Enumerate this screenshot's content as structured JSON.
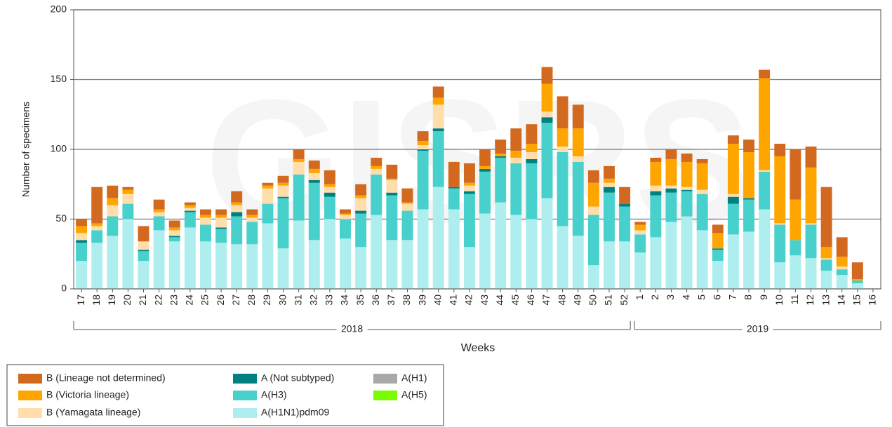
{
  "chart_data": {
    "type": "stacked_bar",
    "watermark": "GISRS",
    "y_label": "Number of specimens",
    "x_label": "Weeks",
    "categories": [
      "17",
      "18",
      "19",
      "20",
      "21",
      "22",
      "23",
      "24",
      "25",
      "26",
      "27",
      "28",
      "29",
      "30",
      "31",
      "32",
      "33",
      "34",
      "35",
      "36",
      "37",
      "38",
      "39",
      "40",
      "41",
      "42",
      "43",
      "44",
      "45",
      "46",
      "47",
      "48",
      "49",
      "50",
      "51",
      "52",
      "1",
      "2",
      "3",
      "4",
      "5",
      "6",
      "7",
      "8",
      "9",
      "10",
      "11",
      "12",
      "13",
      "14",
      "15",
      "16"
    ],
    "groups": [
      "2018",
      "2019"
    ],
    "ylim": [
      0,
      200
    ],
    "yticks": [
      0,
      50,
      100,
      150,
      200
    ],
    "grid": true,
    "series": [
      {
        "name": "B (Lineage not determined)",
        "color": "#d2691e",
        "values": [
          5,
          26,
          9,
          2,
          11,
          7,
          5,
          2,
          4,
          4,
          8,
          4,
          2,
          5,
          7,
          6,
          10,
          3,
          8,
          6,
          10,
          10,
          7,
          8,
          18,
          14,
          12,
          10,
          16,
          14,
          12,
          23,
          17,
          9,
          9,
          12,
          2,
          3,
          7,
          6,
          3,
          6,
          6,
          9,
          6,
          9,
          36,
          15,
          43,
          14,
          12,
          0
        ]
      },
      {
        "name": "B (Victoria lineage)",
        "color": "#ffa500",
        "values": [
          5,
          2,
          5,
          3,
          0,
          2,
          2,
          2,
          2,
          2,
          2,
          2,
          2,
          2,
          2,
          3,
          2,
          1,
          2,
          2,
          1,
          1,
          3,
          5,
          0,
          2,
          2,
          2,
          5,
          6,
          20,
          13,
          20,
          17,
          3,
          0,
          4,
          17,
          19,
          18,
          19,
          11,
          36,
          33,
          66,
          48,
          29,
          40,
          8,
          7,
          1,
          0
        ]
      },
      {
        "name": "B (Yamagata lineage)",
        "color": "#ffdeac",
        "values": [
          5,
          3,
          8,
          7,
          6,
          3,
          4,
          2,
          5,
          7,
          5,
          3,
          11,
          8,
          9,
          5,
          4,
          3,
          9,
          4,
          9,
          5,
          3,
          17,
          0,
          4,
          0,
          0,
          4,
          5,
          4,
          4,
          4,
          6,
          3,
          0,
          3,
          4,
          2,
          2,
          3,
          0,
          2,
          0,
          1,
          1,
          0,
          1,
          1,
          2,
          0,
          0
        ]
      },
      {
        "name": "A (Not subtyped)",
        "color": "#008080",
        "values": [
          2,
          0,
          0,
          0,
          1,
          0,
          1,
          1,
          0,
          1,
          3,
          0,
          0,
          1,
          0,
          2,
          3,
          0,
          2,
          0,
          2,
          0,
          1,
          2,
          1,
          2,
          2,
          1,
          0,
          3,
          4,
          0,
          0,
          0,
          4,
          2,
          0,
          3,
          3,
          1,
          0,
          1,
          5,
          1,
          0,
          0,
          0,
          0,
          0,
          0,
          0,
          0
        ]
      },
      {
        "name": "A(H3)",
        "color": "#48d1cc",
        "values": [
          13,
          9,
          14,
          11,
          7,
          10,
          3,
          11,
          12,
          10,
          20,
          16,
          14,
          36,
          33,
          41,
          16,
          14,
          24,
          29,
          32,
          21,
          42,
          40,
          15,
          38,
          30,
          32,
          37,
          40,
          54,
          53,
          53,
          36,
          35,
          25,
          13,
          30,
          21,
          18,
          26,
          8,
          22,
          23,
          27,
          27,
          11,
          24,
          8,
          4,
          2,
          0
        ]
      },
      {
        "name": "A(H1N1)pdm09",
        "color": "#afeeee",
        "values": [
          20,
          33,
          38,
          50,
          20,
          42,
          34,
          44,
          34,
          33,
          32,
          32,
          47,
          29,
          49,
          35,
          50,
          36,
          30,
          53,
          35,
          35,
          57,
          73,
          57,
          30,
          54,
          62,
          53,
          50,
          65,
          45,
          38,
          17,
          34,
          34,
          26,
          37,
          48,
          52,
          42,
          20,
          39,
          41,
          57,
          19,
          24,
          22,
          13,
          10,
          4,
          0
        ]
      },
      {
        "name": "A(H1)",
        "color": "#a9a9a9",
        "values": [
          0,
          0,
          0,
          0,
          0,
          0,
          0,
          0,
          0,
          0,
          0,
          0,
          0,
          0,
          0,
          0,
          0,
          0,
          0,
          0,
          0,
          0,
          0,
          0,
          0,
          0,
          0,
          0,
          0,
          0,
          0,
          0,
          0,
          0,
          0,
          0,
          0,
          0,
          0,
          0,
          0,
          0,
          0,
          0,
          0,
          0,
          0,
          0,
          0,
          0,
          0,
          0
        ]
      },
      {
        "name": "A(H5)",
        "color": "#7cfc00",
        "values": [
          0,
          0,
          0,
          0,
          0,
          0,
          0,
          0,
          0,
          0,
          0,
          0,
          0,
          0,
          0,
          0,
          0,
          0,
          0,
          0,
          0,
          0,
          0,
          0,
          0,
          0,
          0,
          0,
          0,
          0,
          0,
          0,
          0,
          0,
          0,
          0,
          0,
          0,
          0,
          0,
          0,
          0,
          0,
          0,
          0,
          0,
          0,
          0,
          0,
          0,
          0,
          0
        ]
      }
    ]
  }
}
